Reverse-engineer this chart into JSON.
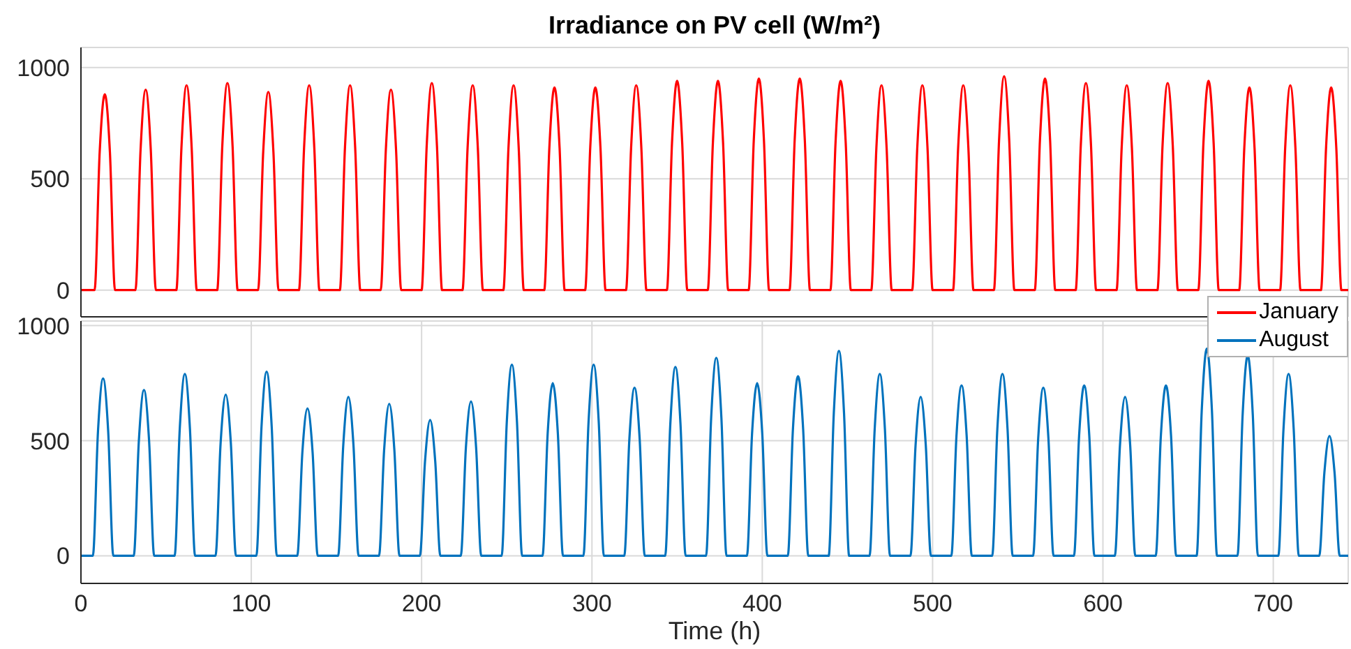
{
  "chart_data": [
    {
      "type": "line",
      "title": "Irradiance on PV cell (W/m²)",
      "xlim": [
        0,
        744
      ],
      "xticks": [
        0,
        100,
        200,
        300,
        400,
        500,
        600,
        700
      ],
      "ylim": [
        -120,
        1090
      ],
      "yticks": [
        0,
        500,
        1000
      ],
      "grid": true,
      "tick_labels": "y",
      "legend": "bottom right",
      "line_style": "solid",
      "marker": "none",
      "series": [
        {
          "name": "January",
          "color": "#ff0000",
          "x": [
            0,
            8,
            11,
            14,
            17,
            20,
            32,
            35,
            38,
            41,
            44,
            56,
            59,
            62,
            65,
            68,
            80,
            83,
            86,
            89,
            92,
            104,
            107,
            110,
            113,
            116,
            128,
            131,
            134,
            137,
            140,
            152,
            155,
            158,
            161,
            164,
            176,
            179,
            182,
            185,
            188,
            200,
            203,
            206,
            209,
            212,
            224,
            227,
            230,
            233,
            236,
            248,
            251,
            254,
            257,
            260,
            272,
            275,
            278,
            281,
            284,
            296,
            299,
            302,
            305,
            308,
            320,
            323,
            326,
            329,
            332,
            344,
            347,
            350,
            353,
            356,
            368,
            371,
            374,
            377,
            380,
            392,
            395,
            398,
            401,
            404,
            416,
            419,
            422,
            425,
            428,
            440,
            443,
            446,
            449,
            452,
            464,
            467,
            470,
            473,
            476,
            488,
            491,
            494,
            497,
            500,
            512,
            515,
            518,
            521,
            524,
            536,
            539,
            542,
            545,
            548,
            560,
            563,
            566,
            569,
            572,
            584,
            587,
            590,
            593,
            596,
            608,
            611,
            614,
            617,
            620,
            632,
            635,
            638,
            641,
            644,
            656,
            659,
            662,
            665,
            668,
            680,
            683,
            686,
            689,
            692,
            704,
            707,
            710,
            713,
            716,
            728,
            731,
            734,
            737,
            740,
            744
          ],
          "values": [
            0,
            0,
            620,
            880,
            620,
            0,
            0,
            630,
            900,
            630,
            0,
            0,
            640,
            920,
            640,
            0,
            0,
            650,
            930,
            650,
            0,
            0,
            620,
            890,
            620,
            0,
            0,
            640,
            920,
            640,
            0,
            0,
            640,
            920,
            640,
            0,
            0,
            630,
            900,
            630,
            0,
            0,
            650,
            930,
            650,
            0,
            0,
            640,
            920,
            640,
            0,
            0,
            640,
            920,
            640,
            0,
            0,
            640,
            910,
            640,
            0,
            0,
            640,
            910,
            640,
            0,
            0,
            640,
            920,
            640,
            0,
            0,
            660,
            940,
            660,
            0,
            0,
            660,
            940,
            660,
            0,
            0,
            670,
            950,
            670,
            0,
            0,
            670,
            950,
            670,
            0,
            0,
            660,
            940,
            660,
            0,
            0,
            640,
            920,
            640,
            0,
            0,
            640,
            920,
            640,
            0,
            0,
            640,
            920,
            640,
            0,
            0,
            670,
            960,
            670,
            0,
            0,
            670,
            950,
            670,
            0,
            0,
            650,
            930,
            650,
            0,
            0,
            640,
            920,
            640,
            0,
            0,
            650,
            930,
            650,
            0,
            0,
            660,
            940,
            660,
            0,
            0,
            640,
            910,
            640,
            0,
            0,
            640,
            920,
            640,
            0,
            0,
            640,
            910,
            640,
            0,
            0
          ]
        }
      ]
    },
    {
      "type": "line",
      "xlabel": "Time (h)",
      "xlim": [
        0,
        744
      ],
      "xticks": [
        0,
        100,
        200,
        300,
        400,
        500,
        600,
        700
      ],
      "ylim": [
        -120,
        1020
      ],
      "yticks": [
        0,
        500,
        1000
      ],
      "grid": true,
      "legend": "top right",
      "line_style": "solid",
      "marker": "none",
      "series": [
        {
          "name": "August",
          "color": "#0072bd",
          "x": [
            0,
            7,
            10,
            13,
            16,
            19,
            31,
            34,
            37,
            40,
            43,
            55,
            58,
            61,
            64,
            67,
            79,
            82,
            85,
            88,
            91,
            103,
            106,
            109,
            112,
            115,
            127,
            130,
            133,
            136,
            139,
            151,
            154,
            157,
            160,
            163,
            175,
            178,
            181,
            184,
            187,
            199,
            202,
            205,
            208,
            211,
            223,
            226,
            229,
            232,
            235,
            247,
            250,
            253,
            256,
            259,
            271,
            274,
            277,
            280,
            283,
            295,
            298,
            301,
            304,
            307,
            319,
            322,
            325,
            328,
            331,
            343,
            346,
            349,
            352,
            355,
            367,
            370,
            373,
            376,
            379,
            391,
            394,
            397,
            400,
            403,
            415,
            418,
            421,
            424,
            427,
            439,
            442,
            445,
            448,
            451,
            463,
            466,
            469,
            472,
            475,
            487,
            490,
            493,
            496,
            499,
            511,
            514,
            517,
            520,
            523,
            535,
            538,
            541,
            544,
            547,
            559,
            562,
            565,
            568,
            571,
            583,
            586,
            589,
            592,
            595,
            607,
            610,
            613,
            616,
            619,
            631,
            634,
            637,
            640,
            643,
            655,
            658,
            661,
            664,
            667,
            679,
            682,
            685,
            688,
            691,
            703,
            706,
            709,
            712,
            715,
            727,
            730,
            733,
            736,
            739,
            744
          ],
          "values": [
            0,
            0,
            540,
            770,
            540,
            0,
            0,
            500,
            720,
            500,
            0,
            0,
            550,
            790,
            550,
            0,
            0,
            490,
            700,
            490,
            0,
            0,
            560,
            800,
            560,
            0,
            0,
            450,
            640,
            450,
            0,
            0,
            480,
            690,
            480,
            0,
            0,
            460,
            660,
            460,
            0,
            0,
            410,
            590,
            410,
            0,
            0,
            470,
            670,
            470,
            0,
            0,
            580,
            830,
            580,
            0,
            0,
            530,
            750,
            530,
            0,
            0,
            580,
            830,
            580,
            0,
            0,
            510,
            730,
            510,
            0,
            0,
            570,
            820,
            570,
            0,
            0,
            600,
            860,
            600,
            0,
            0,
            530,
            750,
            530,
            0,
            0,
            550,
            780,
            550,
            0,
            0,
            620,
            890,
            620,
            0,
            0,
            550,
            790,
            550,
            0,
            0,
            480,
            690,
            480,
            0,
            0,
            520,
            740,
            520,
            0,
            0,
            550,
            790,
            550,
            0,
            0,
            510,
            730,
            510,
            0,
            0,
            520,
            740,
            520,
            0,
            0,
            480,
            690,
            480,
            0,
            0,
            520,
            740,
            520,
            0,
            0,
            630,
            900,
            630,
            0,
            0,
            610,
            870,
            610,
            0,
            0,
            550,
            790,
            550,
            0,
            0,
            360,
            520,
            360,
            0,
            0
          ]
        }
      ]
    }
  ]
}
